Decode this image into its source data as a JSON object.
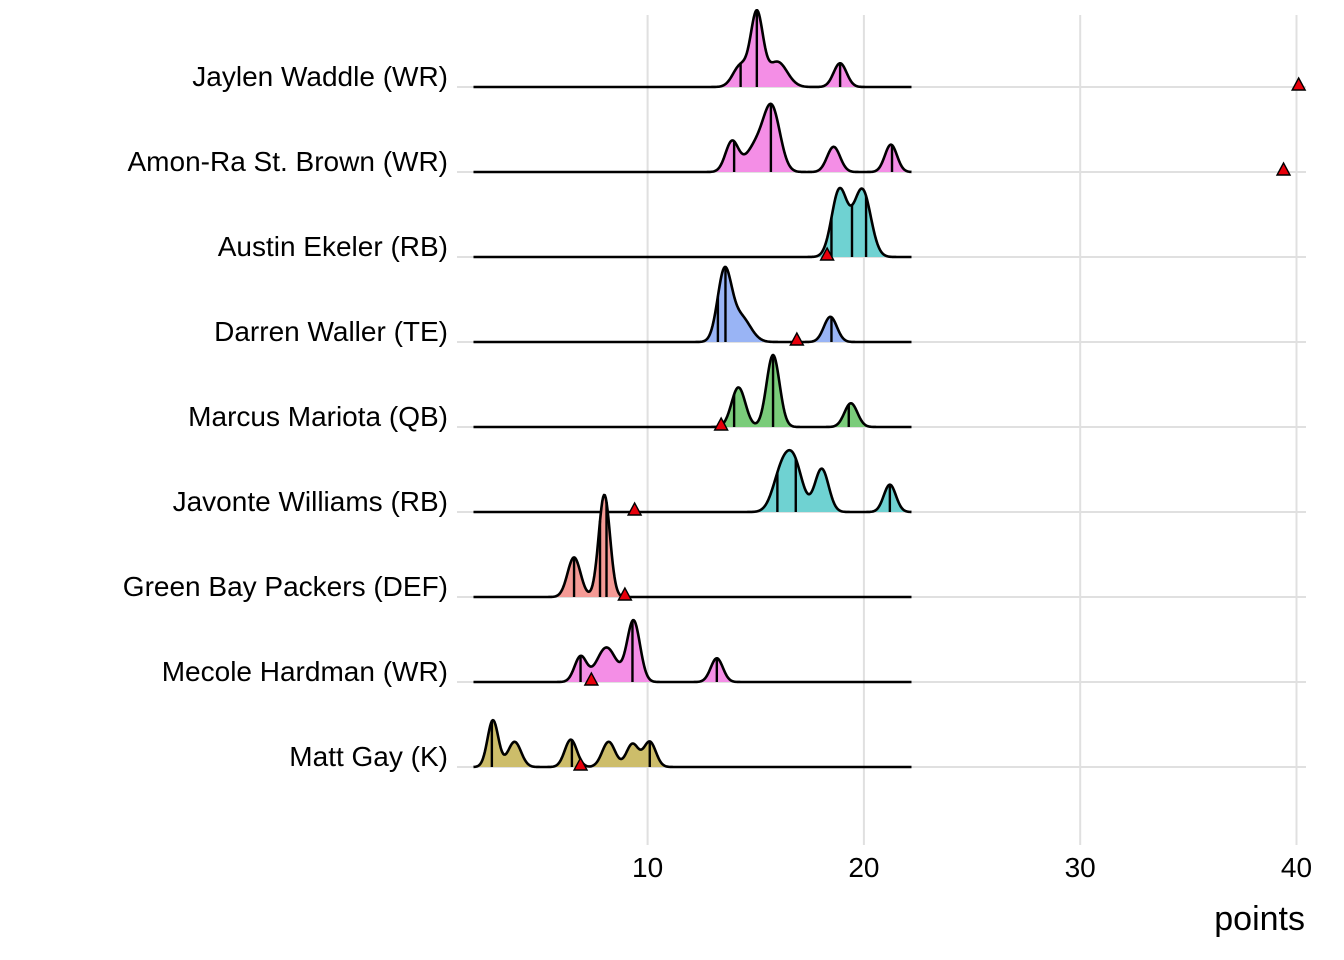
{
  "chart_data": {
    "type": "ridgeline",
    "title": "",
    "xlabel": "points",
    "ylabel": "",
    "xlim": [
      0,
      40.5
    ],
    "x_ticks": [
      10,
      20,
      30,
      40
    ],
    "grid": true,
    "legend": "none",
    "marker": "actual points (red triangle)",
    "density_range": [
      1.95,
      22.2
    ],
    "series": [
      {
        "name": "Jaylen Waddle (WR)",
        "color": "#f48ee6",
        "actual": 40.1,
        "quantiles": [
          14.3,
          15.05,
          18.9
        ],
        "components": [
          [
            14.3,
            0.35,
            0.3
          ],
          [
            15.05,
            0.28,
            1.0
          ],
          [
            16.0,
            0.45,
            0.35
          ],
          [
            18.9,
            0.3,
            0.33
          ]
        ]
      },
      {
        "name": "Amon-Ra St. Brown (WR)",
        "color": "#f48ee6",
        "actual": 39.4,
        "quantiles": [
          14.0,
          15.7,
          21.3
        ],
        "components": [
          [
            13.9,
            0.3,
            0.42
          ],
          [
            15.0,
            0.45,
            0.35
          ],
          [
            15.75,
            0.38,
            0.85
          ],
          [
            18.6,
            0.3,
            0.35
          ],
          [
            21.25,
            0.28,
            0.38
          ]
        ]
      },
      {
        "name": "Austin Ekeler (RB)",
        "color": "#6fd2d2",
        "actual": 18.3,
        "quantiles": [
          18.5,
          19.45,
          20.1
        ],
        "components": [
          [
            18.85,
            0.35,
            0.88
          ],
          [
            19.95,
            0.38,
            0.88
          ],
          [
            19.4,
            0.4,
            0.15
          ]
        ]
      },
      {
        "name": "Darren Waller (TE)",
        "color": "#99b4f5",
        "actual": 16.9,
        "quantiles": [
          13.25,
          13.6,
          18.5
        ],
        "components": [
          [
            13.55,
            0.32,
            0.95
          ],
          [
            14.3,
            0.45,
            0.35
          ],
          [
            18.45,
            0.3,
            0.35
          ]
        ]
      },
      {
        "name": "Marcus Mariota (QB)",
        "color": "#7acc7a",
        "actual": 13.4,
        "quantiles": [
          14.0,
          15.8,
          19.3
        ],
        "components": [
          [
            14.2,
            0.32,
            0.55
          ],
          [
            15.8,
            0.3,
            1.0
          ],
          [
            19.4,
            0.3,
            0.33
          ]
        ]
      },
      {
        "name": "Javonte Williams (RB)",
        "color": "#6fd2d2",
        "actual": 9.4,
        "quantiles": [
          16.0,
          16.85,
          21.2
        ],
        "components": [
          [
            16.2,
            0.4,
            0.55
          ],
          [
            16.8,
            0.38,
            0.6
          ],
          [
            18.05,
            0.32,
            0.6
          ],
          [
            21.2,
            0.28,
            0.38
          ]
        ]
      },
      {
        "name": "Green Bay Packers (DEF)",
        "color": "#f49a95",
        "actual": 8.95,
        "quantiles": [
          6.6,
          7.8,
          8.1
        ],
        "components": [
          [
            6.6,
            0.3,
            0.55
          ],
          [
            8.0,
            0.26,
            1.42
          ]
        ]
      },
      {
        "name": "Mecole Hardman (WR)",
        "color": "#f48ee6",
        "actual": 7.4,
        "quantiles": [
          6.9,
          9.3,
          13.2
        ],
        "components": [
          [
            6.9,
            0.28,
            0.35
          ],
          [
            8.1,
            0.45,
            0.48
          ],
          [
            9.35,
            0.3,
            0.85
          ],
          [
            13.2,
            0.28,
            0.33
          ]
        ]
      },
      {
        "name": "Matt Gay (K)",
        "color": "#cdbd6a",
        "actual": 6.9,
        "quantiles": [
          2.8,
          6.5,
          10.1
        ],
        "components": [
          [
            2.85,
            0.25,
            0.65
          ],
          [
            3.85,
            0.3,
            0.35
          ],
          [
            6.45,
            0.28,
            0.38
          ],
          [
            8.2,
            0.3,
            0.35
          ],
          [
            9.3,
            0.28,
            0.32
          ],
          [
            10.1,
            0.28,
            0.35
          ]
        ]
      }
    ]
  }
}
